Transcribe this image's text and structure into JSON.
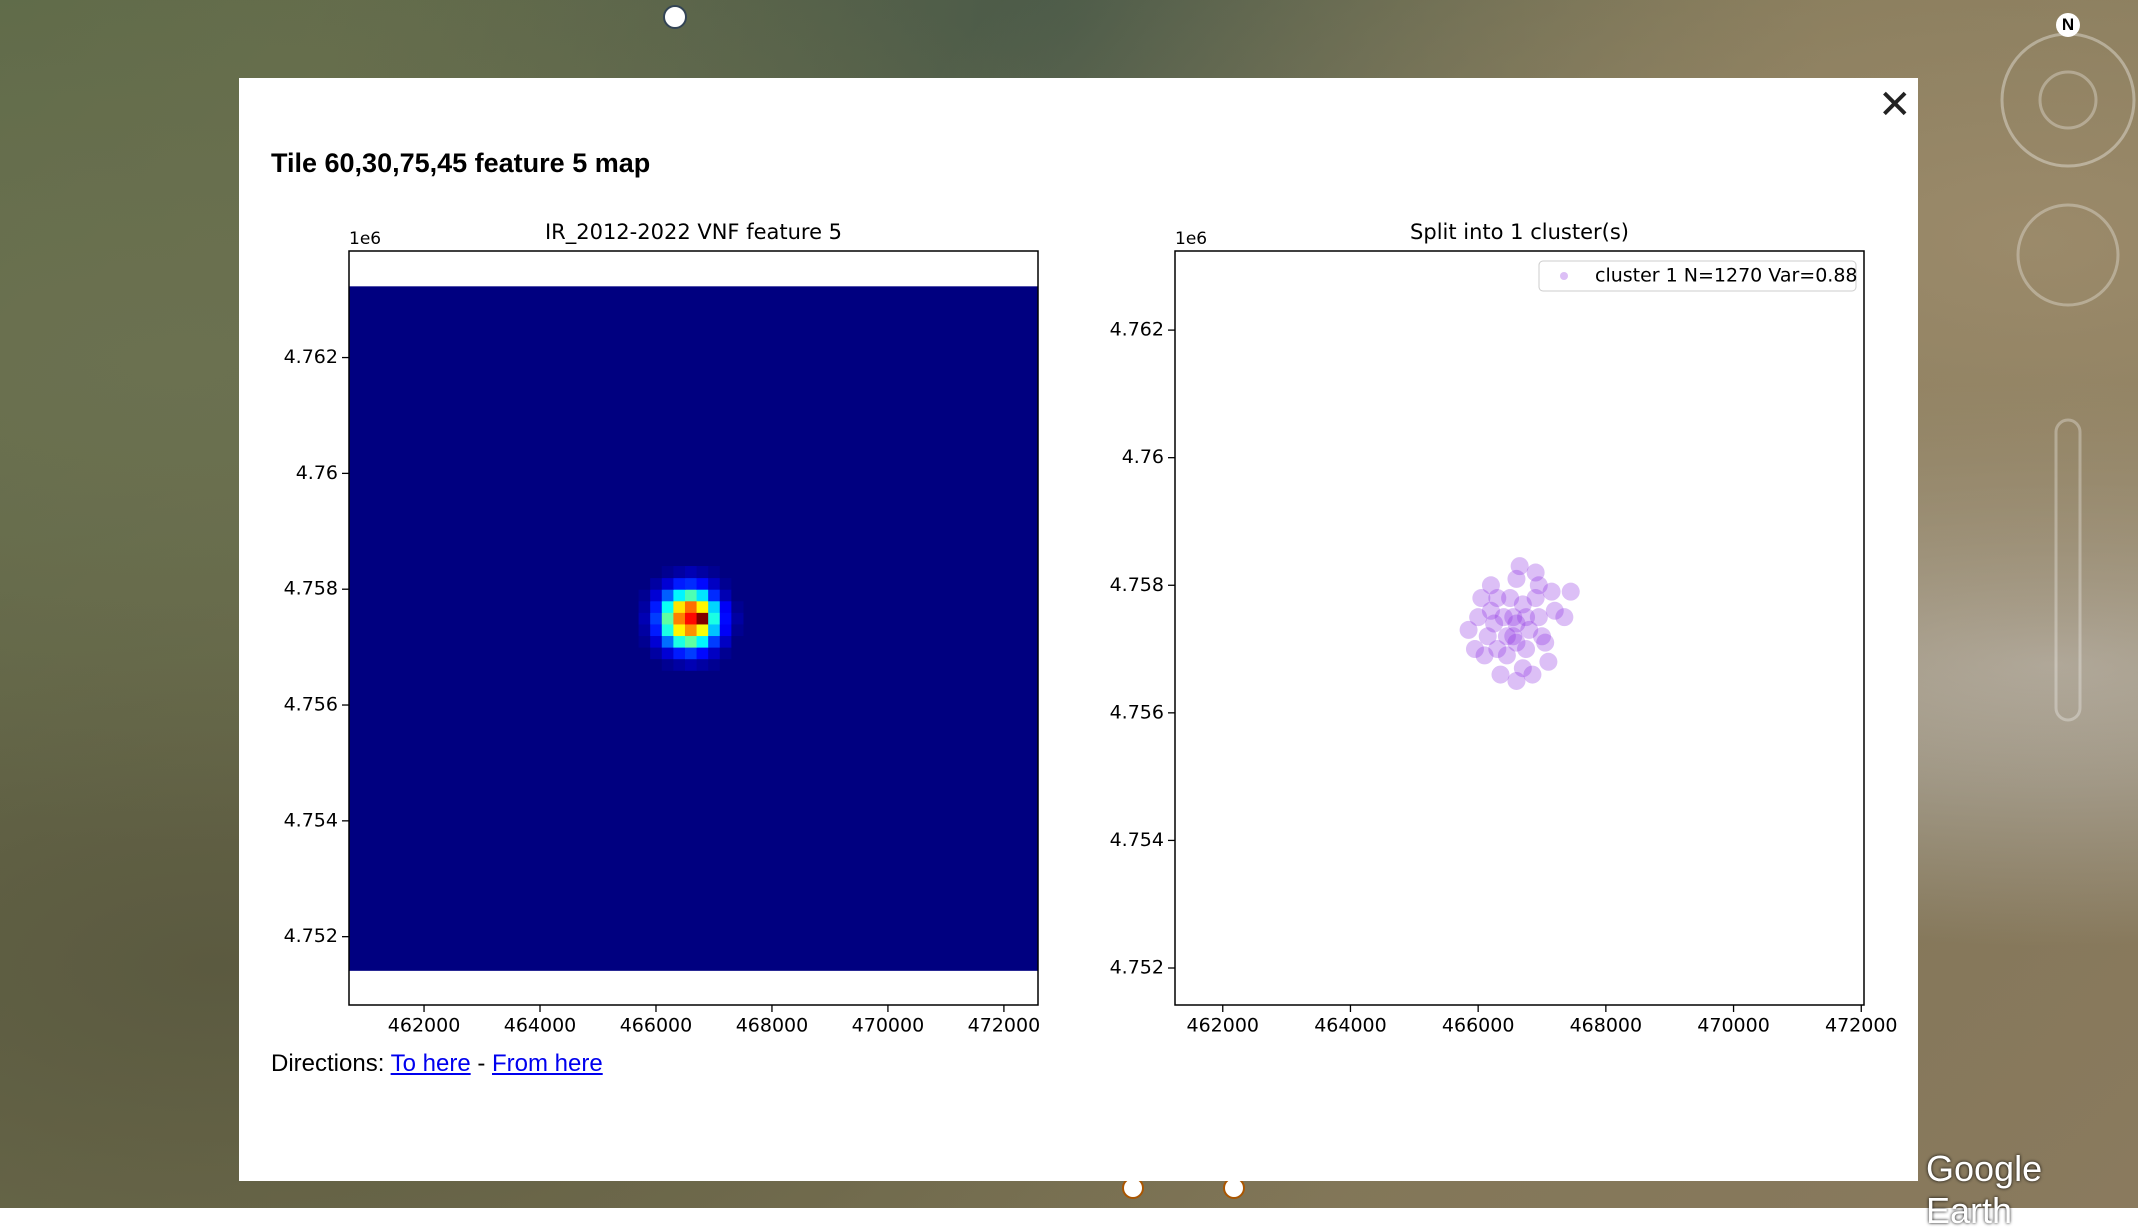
{
  "popup": {
    "title": "Tile 60,30,75,45 feature 5 map",
    "directions_label": "Directions:",
    "link_to": "To here",
    "separator": "-",
    "link_from": "From here"
  },
  "map": {
    "brand": "Google Earth",
    "compass": "N"
  },
  "chart_data": [
    {
      "type": "heatmap",
      "title": "IR_2012-2022 VNF feature 5",
      "offset_text": "1e6",
      "colormap": "jet",
      "xlim": [
        460706,
        472588
      ],
      "ylim": [
        4.75082,
        4.76384
      ],
      "xticks": [
        462000,
        464000,
        466000,
        468000,
        470000,
        472000
      ],
      "yticks": [
        4.752,
        4.754,
        4.756,
        4.758,
        4.76,
        4.762
      ],
      "extent": {
        "x": [
          460706,
          472588
        ],
        "y": [
          4.75141,
          4.76323
        ]
      },
      "xbins": [
        465700,
        465900,
        466100,
        466300,
        466500,
        466700,
        466900,
        467100,
        467300,
        467500
      ],
      "ybins": [
        4.7566,
        4.7568,
        4.757,
        4.7572,
        4.7574,
        4.7576,
        4.7578,
        4.758,
        4.7582,
        4.7584
      ],
      "counts": [
        [
          0,
          0,
          1,
          2,
          3,
          2,
          1,
          0,
          0
        ],
        [
          0,
          2,
          5,
          9,
          11,
          8,
          4,
          1,
          0
        ],
        [
          1,
          5,
          14,
          24,
          28,
          22,
          11,
          4,
          0
        ],
        [
          2,
          9,
          24,
          38,
          44,
          37,
          19,
          7,
          1
        ],
        [
          3,
          11,
          28,
          45,
          52,
          60,
          24,
          8,
          2
        ],
        [
          2,
          9,
          23,
          39,
          46,
          38,
          20,
          7,
          1
        ],
        [
          1,
          5,
          13,
          22,
          27,
          21,
          10,
          3,
          0
        ],
        [
          0,
          2,
          5,
          9,
          10,
          8,
          4,
          1,
          0
        ],
        [
          0,
          0,
          1,
          2,
          3,
          2,
          1,
          0,
          0
        ]
      ]
    },
    {
      "type": "scatter",
      "title": "Split into 1 cluster(s)",
      "offset_text": "1e6",
      "legend": "upper right",
      "xlim": [
        461252,
        472043
      ],
      "ylim": [
        4.75142,
        4.76324
      ],
      "xticks": [
        462000,
        464000,
        466000,
        468000,
        470000,
        472000
      ],
      "yticks": [
        4.752,
        4.754,
        4.756,
        4.758,
        4.76,
        4.762
      ],
      "series": [
        {
          "name": "cluster 1 N=1270 Var=0.88",
          "color": "#8a2be2",
          "x": [
            466600,
            466300,
            466900,
            466150,
            467050,
            466450,
            466750,
            466000,
            467200,
            466600,
            466350,
            466850,
            466200,
            466950,
            466550,
            466700,
            466100,
            467100,
            466400,
            466800,
            465850,
            467350,
            466600,
            466250,
            466950,
            466500,
            466700,
            466050,
            467150,
            466650,
            467450,
            465950,
            466600,
            466300,
            466900,
            466550,
            466450,
            466750,
            466200,
            467000
          ],
          "y": [
            4.7574,
            4.7578,
            4.7578,
            4.7572,
            4.7571,
            4.7569,
            4.757,
            4.7575,
            4.7576,
            4.7581,
            4.7566,
            4.7566,
            4.758,
            4.758,
            4.7572,
            4.7577,
            4.7569,
            4.7568,
            4.7575,
            4.7573,
            4.7573,
            4.7575,
            4.7565,
            4.7574,
            4.7575,
            4.7578,
            4.7567,
            4.7578,
            4.7579,
            4.7583,
            4.7579,
            4.757,
            4.7571,
            4.757,
            4.7582,
            4.7575,
            4.7572,
            4.7575,
            4.7576,
            4.7572
          ]
        }
      ]
    }
  ]
}
